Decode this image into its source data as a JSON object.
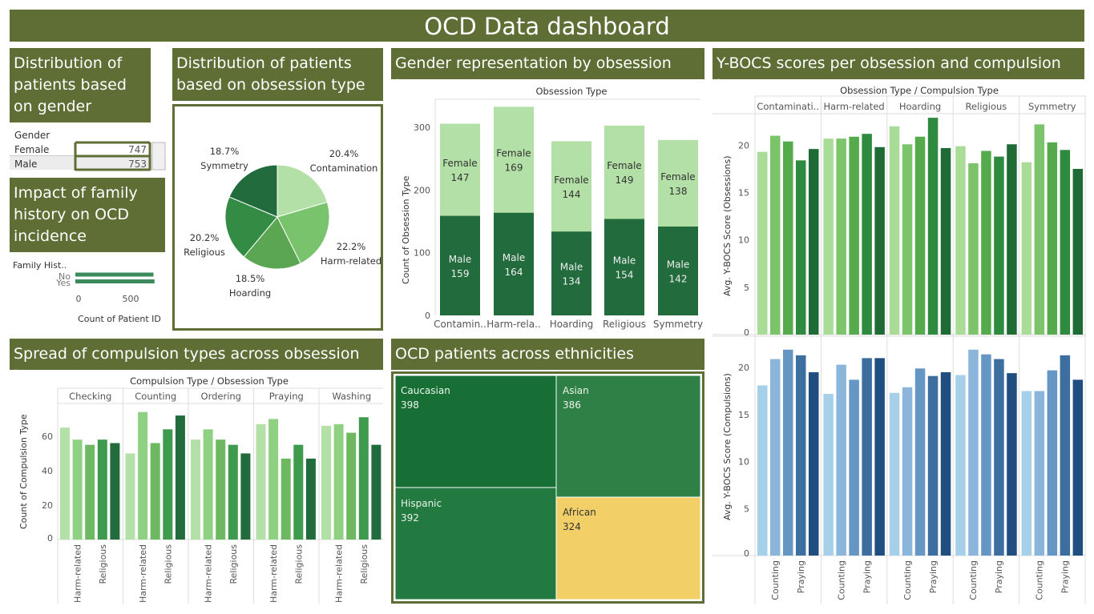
{
  "header": {
    "title": "OCD Data dashboard"
  },
  "sections": {
    "gender": "Distribution of patients based on gender",
    "obsession": "Distribution of patients based on obsession type",
    "gender_obsession": "Gender representation by obsession types",
    "ybocs": "Y-BOCS scores per obsession and compulsion types",
    "family": "Impact of family history on OCD incidence",
    "compulsion": "Spread of compulsion types across obsession types",
    "ethnicity": "OCD patients across ethnicities"
  },
  "chart_data": [
    {
      "id": "gender_table",
      "type": "table",
      "column_header": "Gender",
      "rows": [
        {
          "label": "Female",
          "value": 747
        },
        {
          "label": "Male",
          "value": 753
        }
      ]
    },
    {
      "id": "family_history",
      "type": "bar",
      "column_header": "Family Hist..",
      "categories": [
        "No",
        "Yes"
      ],
      "values": [
        750,
        760
      ],
      "xlabel": "Count of Patient ID",
      "xticks": [
        "0",
        "500"
      ],
      "colors": [
        "#3a8a5c"
      ]
    },
    {
      "id": "obsession_pie",
      "type": "pie",
      "slices": [
        {
          "label": "Contamination",
          "pct": "20.4%",
          "value": 20.4,
          "color": "#b3e0a6"
        },
        {
          "label": "Harm-related",
          "pct": "22.2%",
          "value": 22.2,
          "color": "#79c36c"
        },
        {
          "label": "Hoarding",
          "pct": "18.5%",
          "value": 18.5,
          "color": "#5aa652"
        },
        {
          "label": "Religious",
          "pct": "20.2%",
          "value": 20.2,
          "color": "#348c44"
        },
        {
          "label": "Symmetry",
          "pct": "18.7%",
          "value": 18.7,
          "color": "#226b3c"
        }
      ]
    },
    {
      "id": "gender_stacked",
      "type": "bar",
      "title": "Obsession Type",
      "ylabel": "Count of Obsession Type",
      "categories": [
        "Contamin..",
        "Harm-rela..",
        "Hoarding",
        "Religious",
        "Symmetry"
      ],
      "series": [
        {
          "name": "Male",
          "values": [
            159,
            164,
            134,
            154,
            142
          ],
          "color": "#226b3c"
        },
        {
          "name": "Female",
          "values": [
            147,
            169,
            144,
            149,
            138
          ],
          "color": "#b3e0a6"
        }
      ],
      "yticks": [
        0,
        100,
        200,
        300
      ],
      "ylim": [
        0,
        345
      ]
    },
    {
      "id": "compulsion_bars",
      "type": "bar",
      "title": "Compulsion Type / Obsession Type",
      "ylabel": "Count of Compulsion Type",
      "groups": [
        "Checking",
        "Counting",
        "Ordering",
        "Praying",
        "Washing"
      ],
      "bottom_labels": [
        "Harm-related",
        "Religious"
      ],
      "values": [
        [
          65,
          58,
          55,
          58,
          56
        ],
        [
          50,
          74,
          56,
          64,
          72
        ],
        [
          58,
          64,
          58,
          55,
          50
        ],
        [
          67,
          70,
          47,
          55,
          47
        ],
        [
          66,
          67,
          62,
          71,
          55
        ]
      ],
      "colors": [
        "#b3e0a6",
        "#8fd183",
        "#6db860",
        "#3e9a4d",
        "#226b3c"
      ],
      "yticks": [
        0,
        20,
        40,
        60
      ],
      "ylim": [
        0,
        79
      ]
    },
    {
      "id": "ethnicity_treemap",
      "type": "treemap",
      "items": [
        {
          "label": "Caucasian",
          "value": 398,
          "color": "#176f36"
        },
        {
          "label": "Asian",
          "value": 386,
          "color": "#2e8046"
        },
        {
          "label": "Hispanic",
          "value": 392,
          "color": "#237a40"
        },
        {
          "label": "African",
          "value": 324,
          "color": "#f2d067"
        }
      ]
    },
    {
      "id": "ybocs_obsessions",
      "type": "bar",
      "title": "Obsession Type / Compulsion Type",
      "ylabel": "Avg. Y-BOCS Score (Obsessions)",
      "groups": [
        "Contaminati..",
        "Harm-related",
        "Hoarding",
        "Religious",
        "Symmetry"
      ],
      "values": [
        [
          19.3,
          21.0,
          20.4,
          18.4,
          19.6
        ],
        [
          20.7,
          20.7,
          20.9,
          21.2,
          19.8
        ],
        [
          22.0,
          20.1,
          20.9,
          22.9,
          19.7
        ],
        [
          19.9,
          18.1,
          19.4,
          18.8,
          20.1
        ],
        [
          18.2,
          22.2,
          20.3,
          19.5,
          17.5
        ]
      ],
      "colors": [
        "#a8dc97",
        "#7cc46a",
        "#55ab4c",
        "#2e8a3e",
        "#1f6b36"
      ],
      "yticks": [
        0,
        5,
        10,
        15,
        20
      ],
      "ylim": [
        0,
        23.5
      ]
    },
    {
      "id": "ybocs_compulsions",
      "type": "bar",
      "ylabel": "Avg. Y-BOCS Score (Compulsions)",
      "bottom_labels": [
        "Counting",
        "Praying"
      ],
      "values": [
        [
          18.1,
          20.9,
          21.9,
          21.3,
          19.5
        ],
        [
          17.2,
          20.3,
          18.7,
          21.0,
          21.0
        ],
        [
          17.3,
          17.9,
          19.9,
          19.1,
          19.5
        ],
        [
          19.2,
          21.9,
          21.4,
          20.9,
          19.4
        ],
        [
          17.5,
          17.5,
          19.7,
          21.3,
          18.7
        ]
      ],
      "colors": [
        "#a6cfe9",
        "#8bb5db",
        "#6596c4",
        "#3c6e9f",
        "#214e80"
      ],
      "yticks": [
        0,
        5,
        10,
        15,
        20
      ],
      "ylim": [
        0,
        23.5
      ]
    }
  ]
}
